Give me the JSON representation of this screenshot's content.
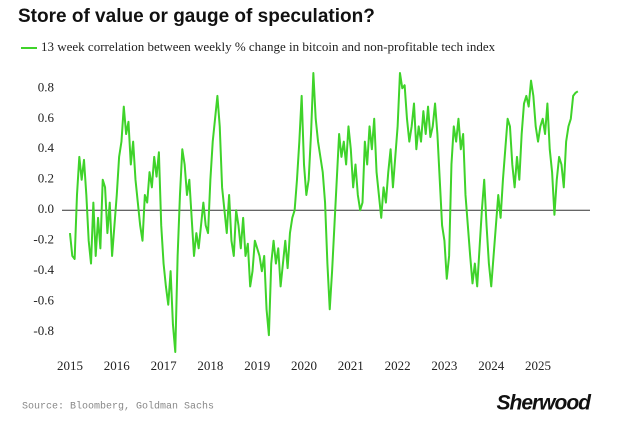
{
  "chart_data": {
    "type": "line",
    "title": "Store of value or gauge of speculation?",
    "source": "Source: Bloomberg, Goldman Sachs",
    "brand": "Sherwood",
    "xlim": [
      2014.83,
      2026.11
    ],
    "xticks": [
      2015,
      2016,
      2017,
      2018,
      2019,
      2020,
      2021,
      2022,
      2023,
      2024,
      2025
    ],
    "ylim": [
      -0.95,
      0.92
    ],
    "yticks": [
      0.8,
      0.6,
      0.4,
      0.2,
      {
        "value": 0,
        "label": "0.0"
      },
      -0.2,
      -0.4,
      -0.6,
      -0.8
    ],
    "zero_line": true,
    "x": [
      2015,
      2015.05,
      2015.1,
      2015.15,
      2015.2,
      2015.25,
      2015.3,
      2015.35,
      2015.4,
      2015.45,
      2015.5,
      2015.55,
      2015.6,
      2015.65,
      2015.7,
      2015.75,
      2015.8,
      2015.85,
      2015.9,
      2015.95,
      2016,
      2016.05,
      2016.1,
      2016.15,
      2016.2,
      2016.25,
      2016.3,
      2016.35,
      2016.4,
      2016.45,
      2016.5,
      2016.55,
      2016.6,
      2016.65,
      2016.7,
      2016.75,
      2016.8,
      2016.85,
      2016.9,
      2016.95,
      2017,
      2017.05,
      2017.1,
      2017.15,
      2017.2,
      2017.25,
      2017.3,
      2017.35,
      2017.4,
      2017.45,
      2017.5,
      2017.55,
      2017.6,
      2017.65,
      2017.7,
      2017.75,
      2017.8,
      2017.85,
      2017.9,
      2017.95,
      2018,
      2018.05,
      2018.1,
      2018.15,
      2018.2,
      2018.25,
      2018.3,
      2018.35,
      2018.4,
      2018.45,
      2018.5,
      2018.55,
      2018.6,
      2018.65,
      2018.7,
      2018.75,
      2018.8,
      2018.85,
      2018.9,
      2018.95,
      2019,
      2019.05,
      2019.1,
      2019.15,
      2019.2,
      2019.25,
      2019.3,
      2019.35,
      2019.4,
      2019.45,
      2019.5,
      2019.55,
      2019.6,
      2019.65,
      2019.7,
      2019.75,
      2019.8,
      2019.85,
      2019.9,
      2019.95,
      2020,
      2020.05,
      2020.1,
      2020.15,
      2020.2,
      2020.25,
      2020.3,
      2020.35,
      2020.4,
      2020.45,
      2020.5,
      2020.55,
      2020.6,
      2020.65,
      2020.7,
      2020.75,
      2020.8,
      2020.85,
      2020.9,
      2020.95,
      2021,
      2021.05,
      2021.1,
      2021.15,
      2021.2,
      2021.25,
      2021.3,
      2021.35,
      2021.4,
      2021.45,
      2021.5,
      2021.55,
      2021.6,
      2021.65,
      2021.7,
      2021.75,
      2021.8,
      2021.85,
      2021.9,
      2021.95,
      2022,
      2022.05,
      2022.1,
      2022.15,
      2022.2,
      2022.25,
      2022.3,
      2022.35,
      2022.4,
      2022.45,
      2022.5,
      2022.55,
      2022.6,
      2022.65,
      2022.7,
      2022.75,
      2022.8,
      2022.85,
      2022.9,
      2022.95,
      2023,
      2023.05,
      2023.1,
      2023.15,
      2023.2,
      2023.25,
      2023.3,
      2023.35,
      2023.4,
      2023.45,
      2023.5,
      2023.55,
      2023.6,
      2023.65,
      2023.7,
      2023.75,
      2023.8,
      2023.85,
      2023.9,
      2023.95,
      2024,
      2024.05,
      2024.1,
      2024.15,
      2024.2,
      2024.25,
      2024.3,
      2024.35,
      2024.4,
      2024.45,
      2024.5,
      2024.55,
      2024.6,
      2024.65,
      2024.7,
      2024.75,
      2024.8,
      2024.85,
      2024.9,
      2024.95,
      2025,
      2025.05,
      2025.1,
      2025.15,
      2025.2,
      2025.25,
      2025.3,
      2025.35,
      2025.4,
      2025.45,
      2025.5,
      2025.55,
      2025.6,
      2025.65,
      2025.7,
      2025.75,
      2025.8,
      2025.85
    ],
    "series": [
      {
        "name": "13 week correlation between weekly % change in bitcoin and non-profitable tech index",
        "color": "#3fd32a",
        "values": [
          -0.15,
          -0.3,
          -0.32,
          0.1,
          0.35,
          0.2,
          0.33,
          0.1,
          -0.2,
          -0.35,
          0.05,
          -0.3,
          -0.05,
          -0.25,
          0.2,
          0.15,
          -0.15,
          0.05,
          -0.3,
          -0.1,
          0.1,
          0.35,
          0.45,
          0.68,
          0.5,
          0.58,
          0.3,
          0.45,
          0.2,
          0.05,
          -0.1,
          -0.2,
          0.1,
          0.05,
          0.25,
          0.15,
          0.35,
          0.22,
          0.38,
          -0.1,
          -0.35,
          -0.5,
          -0.62,
          -0.4,
          -0.75,
          -0.93,
          -0.3,
          0.1,
          0.4,
          0.3,
          0.1,
          0.2,
          -0.05,
          -0.3,
          -0.15,
          -0.25,
          -0.1,
          0.05,
          -0.1,
          -0.15,
          0.2,
          0.45,
          0.6,
          0.75,
          0.55,
          0.15,
          0.0,
          -0.15,
          0.1,
          -0.2,
          -0.3,
          0.0,
          -0.1,
          -0.25,
          -0.05,
          -0.3,
          -0.22,
          -0.5,
          -0.4,
          -0.2,
          -0.25,
          -0.3,
          -0.4,
          -0.3,
          -0.65,
          -0.82,
          -0.35,
          -0.2,
          -0.35,
          -0.25,
          -0.5,
          -0.35,
          -0.2,
          -0.38,
          -0.15,
          -0.05,
          0.0,
          0.2,
          0.45,
          0.75,
          0.3,
          0.1,
          0.2,
          0.5,
          0.9,
          0.6,
          0.45,
          0.35,
          0.25,
          0.05,
          -0.35,
          -0.65,
          -0.4,
          -0.1,
          0.2,
          0.5,
          0.35,
          0.45,
          0.3,
          0.55,
          0.4,
          0.15,
          0.3,
          0.1,
          0.0,
          0.05,
          0.45,
          0.3,
          0.55,
          0.4,
          0.6,
          0.25,
          0.1,
          -0.05,
          0.15,
          0.05,
          0.25,
          0.4,
          0.15,
          0.35,
          0.55,
          0.9,
          0.8,
          0.82,
          0.6,
          0.45,
          0.55,
          0.7,
          0.4,
          0.55,
          0.45,
          0.65,
          0.5,
          0.68,
          0.48,
          0.55,
          0.7,
          0.5,
          0.2,
          -0.1,
          -0.2,
          -0.45,
          -0.3,
          0.3,
          0.55,
          0.45,
          0.6,
          0.4,
          0.5,
          0.1,
          -0.1,
          -0.3,
          -0.48,
          -0.35,
          -0.5,
          -0.25,
          0.0,
          0.2,
          -0.1,
          -0.35,
          -0.5,
          -0.3,
          -0.1,
          0.1,
          -0.05,
          0.2,
          0.4,
          0.6,
          0.55,
          0.3,
          0.15,
          0.35,
          0.2,
          0.5,
          0.7,
          0.75,
          0.68,
          0.85,
          0.75,
          0.55,
          0.45,
          0.55,
          0.6,
          0.5,
          0.7,
          0.4,
          0.25,
          -0.03,
          0.2,
          0.35,
          0.3,
          0.15,
          0.45,
          0.55,
          0.6,
          0.75,
          0.77,
          0.78
        ]
      }
    ]
  }
}
